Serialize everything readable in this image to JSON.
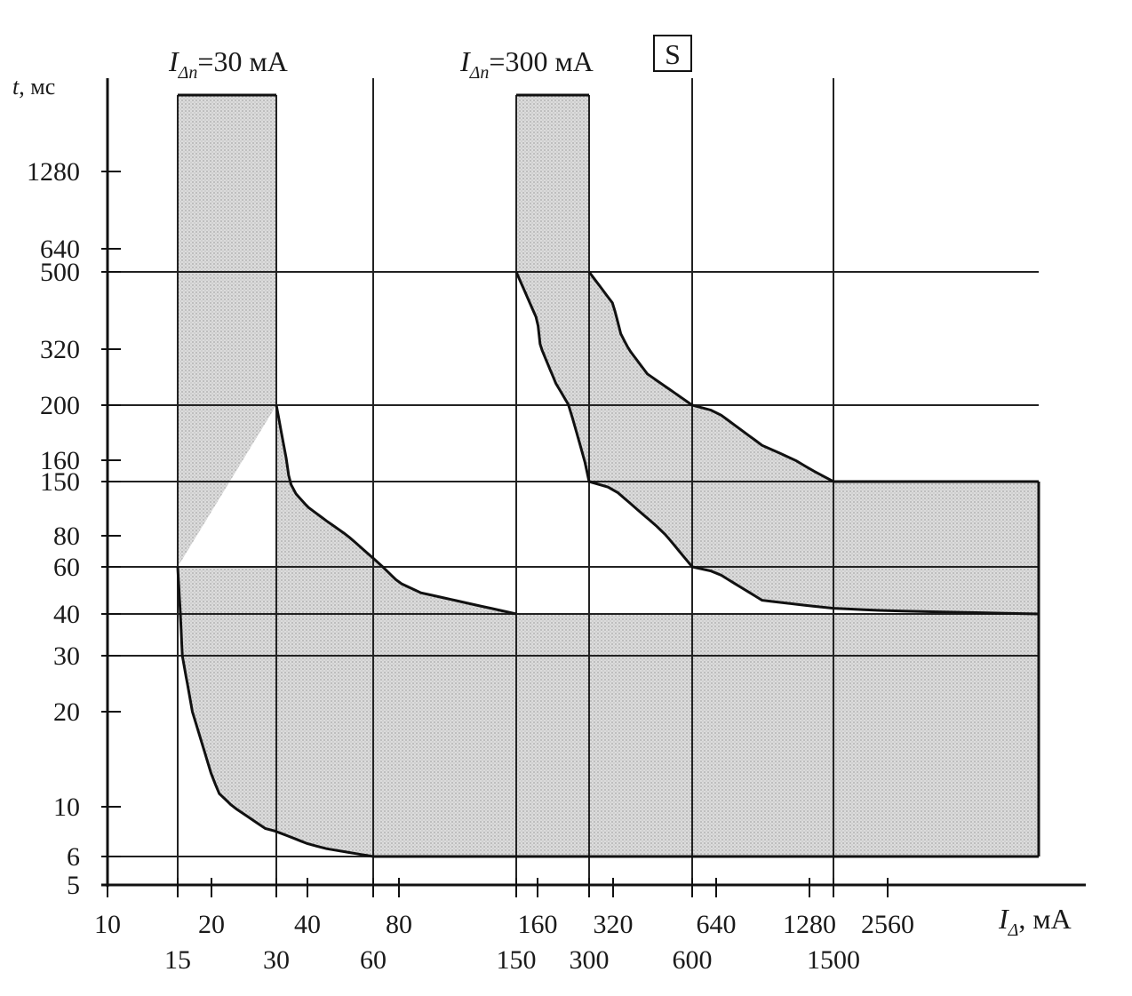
{
  "chart_data": {
    "type": "area",
    "title_left": {
      "symbol": "I",
      "subscript": "Δn",
      "text": "=30 мА"
    },
    "title_right": {
      "symbol": "I",
      "subscript": "Δn",
      "text": "=300 мА",
      "badge": "S"
    },
    "ylabel": {
      "symbol": "t",
      "text": ", мс"
    },
    "xlabel": {
      "symbol": "I",
      "subscript": "Δ",
      "text": ", мА"
    },
    "y_ticks": [
      "1280",
      "640",
      "500",
      "320",
      "200",
      "160",
      "150",
      "80",
      "60",
      "40",
      "30",
      "20",
      "10",
      "6",
      "5"
    ],
    "x_ticks_top": [
      "10",
      "20",
      "40",
      "80",
      "160",
      "320",
      "640",
      "1280",
      "2560"
    ],
    "x_ticks_bottom": [
      "15",
      "30",
      "60",
      "150",
      "300",
      "600",
      "1500"
    ],
    "y_gridlines_ms": [
      500,
      200,
      150,
      60,
      40,
      30,
      6
    ],
    "x_gridlines_mA": [
      15,
      30,
      60,
      150,
      300,
      600,
      1500
    ],
    "regions": [
      {
        "name": "rcd-30mA-top-band",
        "x_range_mA": [
          15,
          30
        ],
        "t_range_ms": [
          500,
          2000
        ]
      },
      {
        "name": "rcd-300mA-s-top-band",
        "x_range_mA": [
          150,
          300
        ],
        "t_range_ms": [
          500,
          2000
        ]
      },
      {
        "name": "rcd-300mA-s-flat-band",
        "x_range_mA": [
          1500,
          5000
        ],
        "t_range_ms": [
          40,
          150
        ]
      }
    ],
    "series": [
      {
        "name": "30mA-max-trip-curve",
        "points": [
          [
            30,
            200
          ],
          [
            36,
            130
          ],
          [
            45,
            95
          ],
          [
            60,
            65
          ],
          [
            90,
            48
          ],
          [
            150,
            40
          ]
        ]
      },
      {
        "name": "30mA-min-trip-curve",
        "points": [
          [
            15,
            60
          ],
          [
            15.6,
            30
          ],
          [
            17,
            20
          ],
          [
            21,
            11
          ],
          [
            28,
            8
          ],
          [
            45,
            6.5
          ],
          [
            60,
            6
          ]
        ]
      },
      {
        "name": "300mA-max-trip-curve",
        "points": [
          [
            300,
            500
          ],
          [
            340,
            350
          ],
          [
            420,
            260
          ],
          [
            600,
            200
          ],
          [
            900,
            170
          ],
          [
            1500,
            150
          ]
        ]
      },
      {
        "name": "300mA-min-trip-curve",
        "points": [
          [
            150,
            500
          ],
          [
            165,
            330
          ],
          [
            200,
            240
          ],
          [
            300,
            150
          ],
          [
            450,
            90
          ],
          [
            600,
            60
          ],
          [
            900,
            45
          ],
          [
            1500,
            42
          ],
          [
            5000,
            40
          ]
        ]
      }
    ]
  }
}
